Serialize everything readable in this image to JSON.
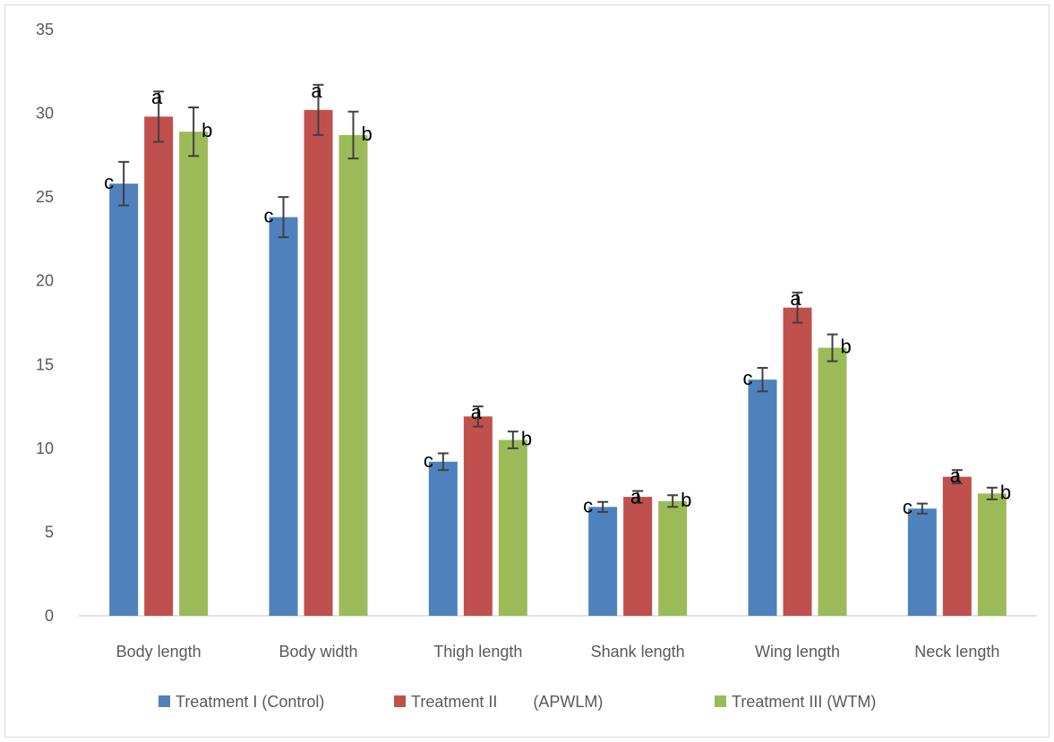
{
  "chart_data": {
    "type": "bar",
    "title": "",
    "xlabel": "",
    "ylabel": "",
    "ylim": [
      0,
      35
    ],
    "yticks": [
      0,
      5,
      10,
      15,
      20,
      25,
      30,
      35
    ],
    "grid": false,
    "legend_position": "bottom",
    "categories": [
      "Body length",
      "Body width",
      "Thigh length",
      "Shank length",
      "Wing length",
      "Neck length"
    ],
    "series": [
      {
        "name": "Treatment I (Control)",
        "color": "#4f81bd",
        "values": [
          25.8,
          23.8,
          9.2,
          6.5,
          14.1,
          6.4
        ],
        "errors": [
          1.3,
          1.2,
          0.5,
          0.3,
          0.7,
          0.3
        ],
        "letters": [
          "c",
          "c",
          "c",
          "c",
          "c",
          "c"
        ]
      },
      {
        "name": "Treatment II        (APWLM)",
        "color": "#c0504d",
        "values": [
          29.8,
          30.2,
          11.9,
          7.1,
          18.4,
          8.3
        ],
        "errors": [
          1.5,
          1.5,
          0.6,
          0.35,
          0.9,
          0.4
        ],
        "letters": [
          "a",
          "a",
          "a",
          "a",
          "a",
          "a"
        ]
      },
      {
        "name": "Treatment III (WTM)",
        "color": "#9bbb59",
        "values": [
          28.9,
          28.7,
          10.5,
          6.85,
          16.0,
          7.3
        ],
        "errors": [
          1.45,
          1.4,
          0.5,
          0.35,
          0.8,
          0.35
        ],
        "letters": [
          "b",
          "b",
          "b",
          "b",
          "b",
          "b"
        ]
      }
    ]
  }
}
